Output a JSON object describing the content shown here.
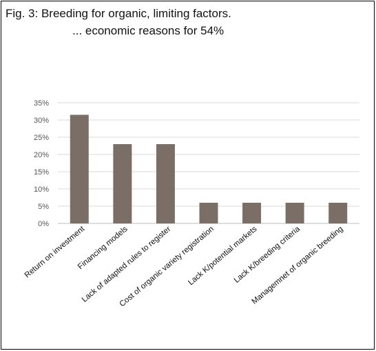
{
  "figure": {
    "title_line1": "Fig. 3: Breeding for organic, limiting factors.",
    "title_line2": "... economic reasons for 54%"
  },
  "chart_data": {
    "type": "bar",
    "categories": [
      "Return on investment",
      "Financing models",
      "Lack of adapted rules to register",
      "Cost of organic variety registration",
      "Lack K/potential markets",
      "Lack K/breeding criteria",
      "Managemnet of organic breeding"
    ],
    "values": [
      31.5,
      23,
      23,
      6,
      6,
      6,
      6
    ],
    "y_tick_labels": [
      "0%",
      "5%",
      "10%",
      "15%",
      "20%",
      "25%",
      "30%",
      "35%"
    ],
    "ylim": [
      0,
      35
    ],
    "y_ticks": [
      0,
      5,
      10,
      15,
      20,
      25,
      30,
      35
    ],
    "grid": true,
    "bar_color": "#7a6e66",
    "grid_color": "#d9d9d9"
  }
}
